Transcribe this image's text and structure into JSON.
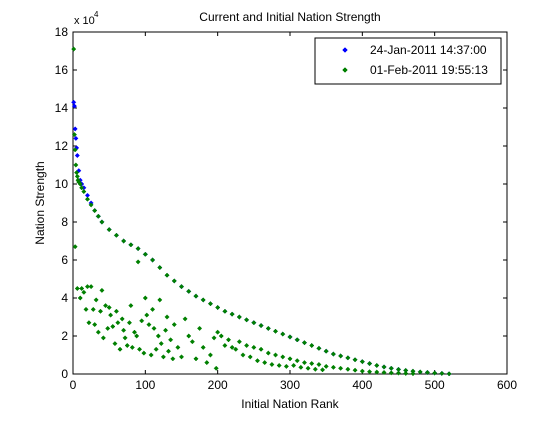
{
  "chart_data": {
    "type": "scatter",
    "title": "Current and Initial Nation Strength",
    "xlabel": "Initial Nation Rank",
    "ylabel": "Nation Strength",
    "y_exponent_label": "x 10",
    "y_exponent_power": "4",
    "xlim": [
      0,
      600
    ],
    "ylim": [
      0,
      18
    ],
    "x_ticks": [
      0,
      100,
      200,
      300,
      400,
      500,
      600
    ],
    "y_ticks": [
      0,
      2,
      4,
      6,
      8,
      10,
      12,
      14,
      16,
      18
    ],
    "x_tick_labels": [
      "0",
      "100",
      "200",
      "300",
      "400",
      "500",
      "600"
    ],
    "y_tick_labels": [
      "0",
      "2",
      "4",
      "6",
      "8",
      "10",
      "12",
      "14",
      "16",
      "18"
    ],
    "grid": false,
    "legend_position": "top-right",
    "colors": {
      "blue": "#0000ff",
      "green": "#008000"
    },
    "series": [
      {
        "name": "24-Jan-2011 14:37:00",
        "color": "#0000ff",
        "marker": "diamond",
        "x": [
          1,
          2,
          3,
          4,
          5,
          6,
          8,
          10,
          12,
          15,
          20,
          25,
          30,
          35,
          40,
          50,
          60,
          70,
          80,
          90,
          100,
          110,
          120,
          130,
          140,
          150,
          160,
          170,
          180,
          190,
          200,
          210,
          220,
          230,
          240,
          250,
          260,
          270,
          280,
          290,
          300,
          310,
          320,
          330,
          340,
          350,
          360,
          370,
          380,
          390,
          400,
          410,
          420,
          430,
          440,
          450,
          460,
          470,
          480,
          490,
          500,
          510,
          520
        ],
        "y": [
          14.3,
          14.1,
          12.9,
          12.4,
          11.9,
          11.5,
          10.7,
          10.2,
          10.0,
          9.8,
          9.4,
          9.0,
          8.6,
          8.3,
          8.0,
          7.6,
          7.3,
          7.0,
          6.8,
          6.6,
          6.3,
          6.0,
          5.6,
          5.2,
          4.9,
          4.6,
          4.35,
          4.1,
          3.9,
          3.7,
          3.5,
          3.3,
          3.15,
          3.0,
          2.85,
          2.7,
          2.55,
          2.4,
          2.25,
          2.1,
          1.95,
          1.8,
          1.65,
          1.5,
          1.35,
          1.2,
          1.05,
          0.95,
          0.85,
          0.75,
          0.65,
          0.55,
          0.45,
          0.37,
          0.3,
          0.24,
          0.19,
          0.15,
          0.11,
          0.08,
          0.05,
          0.03,
          0.01
        ]
      },
      {
        "name": "01-Feb-2011 19:55:13",
        "color": "#008000",
        "marker": "diamond",
        "x": [
          1,
          2,
          3,
          4,
          5,
          6,
          7,
          8,
          10,
          12,
          15,
          20,
          25,
          30,
          35,
          40,
          50,
          60,
          70,
          80,
          90,
          100,
          110,
          120,
          130,
          140,
          150,
          160,
          170,
          180,
          190,
          200,
          210,
          220,
          230,
          240,
          250,
          260,
          270,
          280,
          290,
          300,
          310,
          320,
          330,
          340,
          350,
          360,
          370,
          380,
          390,
          400,
          410,
          420,
          430,
          440,
          450,
          460,
          470,
          480,
          490,
          500,
          510,
          520,
          3,
          6,
          10,
          12,
          15,
          18,
          20,
          22,
          25,
          28,
          30,
          32,
          35,
          38,
          40,
          42,
          45,
          48,
          50,
          52,
          55,
          58,
          60,
          62,
          65,
          68,
          70,
          72,
          75,
          78,
          80,
          82,
          85,
          88,
          90,
          92,
          95,
          98,
          100,
          102,
          105,
          108,
          110,
          112,
          115,
          118,
          120,
          122,
          125,
          128,
          130,
          132,
          135,
          138,
          140,
          145,
          150,
          155,
          160,
          165,
          170,
          175,
          180,
          185,
          190,
          195,
          198,
          200,
          205,
          210,
          215,
          220,
          225,
          230,
          235,
          240,
          245,
          250,
          255,
          260,
          265,
          270,
          275,
          280,
          285,
          290,
          295,
          300,
          305,
          310,
          315,
          320,
          325,
          330,
          335,
          340,
          345,
          350,
          360,
          370,
          380,
          390,
          400,
          410,
          420,
          430,
          440,
          450,
          460,
          470
        ],
        "y": [
          17.1,
          12.6,
          11.8,
          11.0,
          10.6,
          10.4,
          10.2,
          10.1,
          10.0,
          9.8,
          9.6,
          9.2,
          8.9,
          8.6,
          8.3,
          8.0,
          7.6,
          7.3,
          7.0,
          6.8,
          6.6,
          6.3,
          6.0,
          5.6,
          5.2,
          4.9,
          4.6,
          4.35,
          4.1,
          3.9,
          3.7,
          3.5,
          3.3,
          3.15,
          3.0,
          2.85,
          2.7,
          2.55,
          2.4,
          2.25,
          2.1,
          1.95,
          1.8,
          1.65,
          1.5,
          1.35,
          1.2,
          1.05,
          0.95,
          0.85,
          0.75,
          0.65,
          0.55,
          0.45,
          0.37,
          0.3,
          0.24,
          0.19,
          0.15,
          0.11,
          0.08,
          0.05,
          0.03,
          0.01,
          6.7,
          4.5,
          4.0,
          4.5,
          4.3,
          3.4,
          4.6,
          2.7,
          4.6,
          3.4,
          2.6,
          3.9,
          2.2,
          3.3,
          4.4,
          1.9,
          3.6,
          2.4,
          3.5,
          3.1,
          2.5,
          1.6,
          3.3,
          2.7,
          1.3,
          2.9,
          2.3,
          1.9,
          1.5,
          2.7,
          3.6,
          1.4,
          2.2,
          2.0,
          5.9,
          1.3,
          2.8,
          1.1,
          4.0,
          3.1,
          2.6,
          1.0,
          3.4,
          2.4,
          1.3,
          2.0,
          3.9,
          1.6,
          0.9,
          2.3,
          3.0,
          1.2,
          1.8,
          0.8,
          2.6,
          1.4,
          0.9,
          2.9,
          2.0,
          1.7,
          0.8,
          2.4,
          1.4,
          0.6,
          1.0,
          1.9,
          0.3,
          2.2,
          2.0,
          1.5,
          1.8,
          1.4,
          1.3,
          1.7,
          1.0,
          1.5,
          0.9,
          1.4,
          0.7,
          1.3,
          0.6,
          1.1,
          0.5,
          1.0,
          0.45,
          0.9,
          0.4,
          0.8,
          0.45,
          0.7,
          0.35,
          0.6,
          0.3,
          0.55,
          0.25,
          0.5,
          0.22,
          0.4,
          0.35,
          0.3,
          0.25,
          0.2,
          0.15,
          0.12,
          0.1,
          0.08,
          0.06,
          0.05,
          0.03,
          0.02
        ]
      }
    ]
  }
}
